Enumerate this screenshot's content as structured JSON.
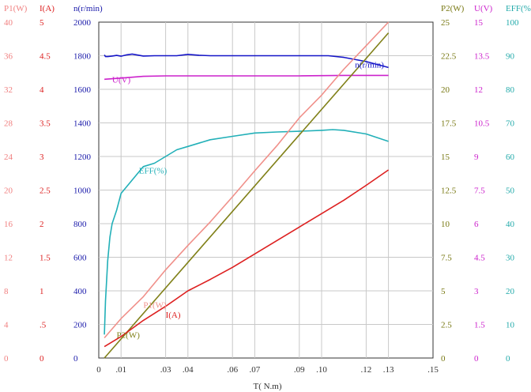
{
  "chart_data": {
    "type": "line",
    "title": "",
    "xlabel": "T( N.m)",
    "x_ticks": [
      "0",
      ".01",
      ".03",
      ".04",
      ".06",
      ".07",
      ".09",
      ".10",
      ".12",
      ".13",
      ".15"
    ],
    "x_tick_values": [
      0,
      0.01,
      0.03,
      0.04,
      0.06,
      0.07,
      0.09,
      0.1,
      0.12,
      0.13,
      0.15
    ],
    "xlim": [
      0,
      0.15
    ],
    "grid": true,
    "axes": [
      {
        "name": "P1(W)",
        "side": "left",
        "slot": 0,
        "min": 0,
        "max": 40,
        "ticks": [
          "0",
          "4",
          "8",
          "12",
          "16",
          "20",
          "24",
          "28",
          "32",
          "36",
          "40"
        ],
        "color": "#f08080"
      },
      {
        "name": "I(A)",
        "side": "left",
        "slot": 1,
        "min": 0,
        "max": 5,
        "ticks": [
          "0",
          ".5",
          "1",
          "1.5",
          "2",
          "2.5",
          "3",
          "3.5",
          "4",
          "4.5",
          "5"
        ],
        "color": "#dd2222"
      },
      {
        "name": "n(r/min)",
        "side": "left",
        "slot": 2,
        "min": 0,
        "max": 2000,
        "ticks": [
          "0",
          "200",
          "400",
          "600",
          "800",
          "1000",
          "1200",
          "1400",
          "1600",
          "1800",
          "2000"
        ],
        "color": "#1a1aaa"
      },
      {
        "name": "P2(W)",
        "side": "right",
        "slot": 0,
        "min": 0,
        "max": 25,
        "ticks": [
          "0",
          "2.5",
          "5",
          "7.5",
          "10",
          "12.5",
          "15",
          "17.5",
          "20",
          "22.5",
          "25"
        ],
        "color": "#777711"
      },
      {
        "name": "U(V)",
        "side": "right",
        "slot": 1,
        "min": 0,
        "max": 15,
        "ticks": [
          "0",
          "1.5",
          "3",
          "4.5",
          "6",
          "7.5",
          "9",
          "10.5",
          "12",
          "13.5",
          "15"
        ],
        "color": "#cc22cc"
      },
      {
        "name": "EFF(%)",
        "side": "right",
        "slot": 2,
        "min": 0,
        "max": 100,
        "ticks": [
          "0",
          "10",
          "20",
          "30",
          "40",
          "50",
          "60",
          "70",
          "80",
          "90",
          "100"
        ],
        "color": "#22aaaa"
      }
    ],
    "series": [
      {
        "name": "n(r/min)",
        "label": "n(r/min)",
        "axis": "n(r/min)",
        "color": "#1515c8",
        "x": [
          0.0025,
          0.003,
          0.004,
          0.006,
          0.008,
          0.01,
          0.0125,
          0.015,
          0.02,
          0.025,
          0.03,
          0.035,
          0.04,
          0.045,
          0.05,
          0.06,
          0.07,
          0.08,
          0.09,
          0.1,
          0.103,
          0.11,
          0.12,
          0.13
        ],
        "values": [
          1805,
          1795,
          1795,
          1798,
          1802,
          1797,
          1805,
          1810,
          1798,
          1800,
          1800,
          1800,
          1808,
          1803,
          1800,
          1800,
          1800,
          1800,
          1800,
          1800,
          1800,
          1790,
          1765,
          1730
        ],
        "label_x": 0.115,
        "label_y": 1730
      },
      {
        "name": "U(V)",
        "label": "U(V)",
        "axis": "U(V)",
        "color": "#cc22cc",
        "x": [
          0.0025,
          0.01,
          0.02,
          0.03,
          0.05,
          0.07,
          0.09,
          0.11,
          0.13
        ],
        "values": [
          12.45,
          12.5,
          12.58,
          12.6,
          12.6,
          12.6,
          12.6,
          12.62,
          12.62
        ],
        "label_x": 0.006,
        "label_y": 12.3
      },
      {
        "name": "EFF(%)",
        "label": "EFF(%)",
        "axis": "EFF(%)",
        "color": "#22b0b8",
        "x": [
          0.0025,
          0.003,
          0.004,
          0.005,
          0.006,
          0.008,
          0.01,
          0.015,
          0.02,
          0.025,
          0.03,
          0.035,
          0.04,
          0.05,
          0.06,
          0.07,
          0.08,
          0.09,
          0.1,
          0.105,
          0.11,
          0.12,
          0.13
        ],
        "values": [
          7,
          17,
          29,
          36,
          40,
          44,
          49,
          53,
          57,
          58,
          60,
          62,
          63,
          65,
          66,
          67,
          67.3,
          67.5,
          67.8,
          68,
          67.8,
          66.7,
          64.5
        ],
        "label_x": 0.018,
        "label_y": 55
      },
      {
        "name": "P2(W)",
        "label": "P2(W)",
        "axis": "P2(W)",
        "color": "#808018",
        "x": [
          0.0025,
          0.13
        ],
        "values": [
          0,
          24.2
        ],
        "label_x": 0.008,
        "label_y": 1.5
      },
      {
        "name": "P1(W)",
        "label": "P1(W)",
        "axis": "P1(W)",
        "color": "#f0908a",
        "x": [
          0.0025,
          0.01,
          0.02,
          0.03,
          0.04,
          0.05,
          0.06,
          0.07,
          0.08,
          0.09,
          0.1,
          0.11,
          0.12,
          0.13
        ],
        "values": [
          2.4,
          4.7,
          7.3,
          10.5,
          13.4,
          16.2,
          19.2,
          22.3,
          25.3,
          28.6,
          31.3,
          34.4,
          37.2,
          40
        ],
        "label_x": 0.02,
        "label_y": 6
      },
      {
        "name": "I(A)",
        "label": "I(A)",
        "axis": "I(A)",
        "color": "#dd2020",
        "x": [
          0.0025,
          0.01,
          0.02,
          0.03,
          0.04,
          0.05,
          0.06,
          0.07,
          0.08,
          0.09,
          0.1,
          0.11,
          0.12,
          0.13
        ],
        "values": [
          0.17,
          0.32,
          0.56,
          0.77,
          1.0,
          1.17,
          1.35,
          1.55,
          1.75,
          1.95,
          2.15,
          2.35,
          2.57,
          2.8
        ],
        "label_x": 0.03,
        "label_y": 0.6
      }
    ]
  }
}
